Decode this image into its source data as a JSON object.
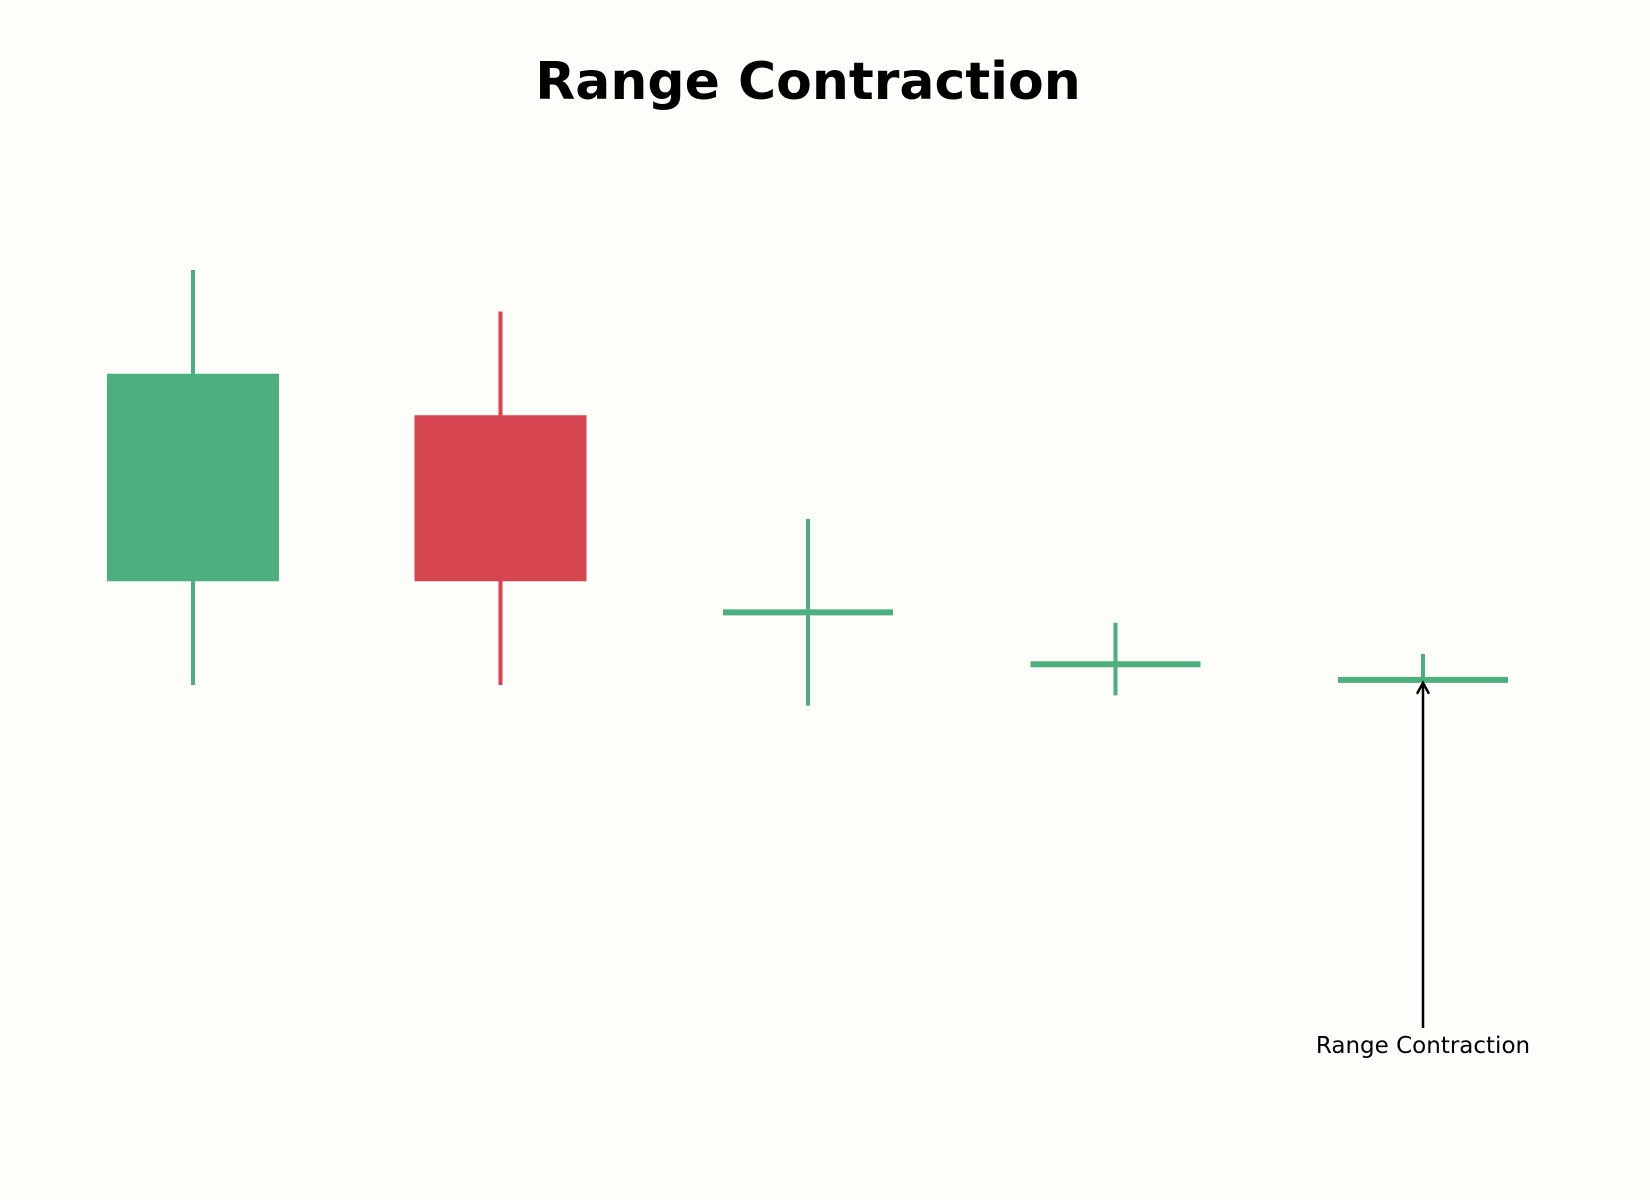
{
  "chart_data": {
    "type": "candlestick",
    "title": "Range Contraction",
    "xlabel": "",
    "ylabel": "",
    "axes_visible": false,
    "grid": false,
    "ylim": [
      0,
      9
    ],
    "candles": [
      {
        "x": 1,
        "open": 4.0,
        "high": 7.0,
        "low": 3.0,
        "close": 6.0,
        "direction": "up"
      },
      {
        "x": 2,
        "open": 5.6,
        "high": 6.6,
        "low": 3.0,
        "close": 4.0,
        "direction": "down"
      },
      {
        "x": 3,
        "open": 3.7,
        "high": 4.6,
        "low": 2.8,
        "close": 3.7,
        "direction": "up"
      },
      {
        "x": 4,
        "open": 3.2,
        "high": 3.6,
        "low": 2.9,
        "close": 3.2,
        "direction": "up"
      },
      {
        "x": 5,
        "open": 3.05,
        "high": 3.3,
        "low": 3.05,
        "close": 3.05,
        "direction": "up"
      }
    ],
    "annotations": [
      {
        "text": "Range Contraction",
        "target_candle": 5,
        "arrow": true
      }
    ],
    "colors": {
      "up": "#4caf7d",
      "down": "#d64550",
      "background": "#fdfdf9",
      "annotation": "#000000"
    }
  }
}
